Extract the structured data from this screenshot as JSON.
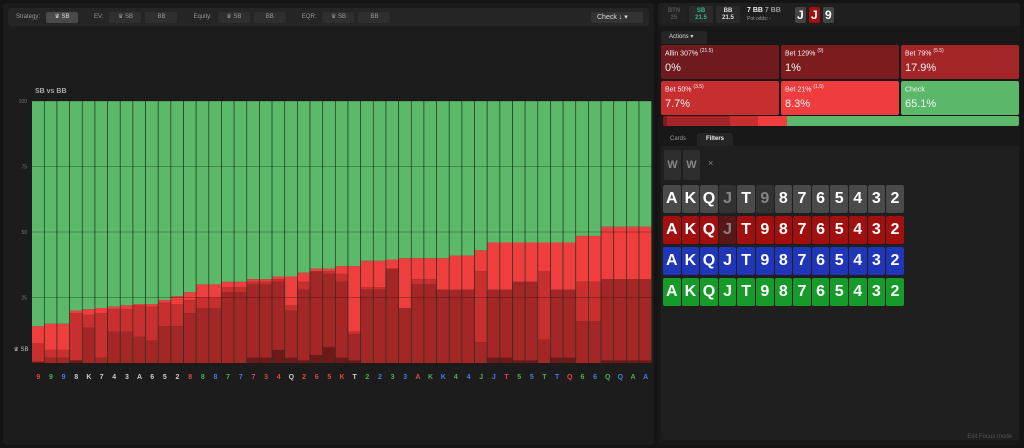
{
  "toolbar": {
    "strategy_label": "Strategy:",
    "ev_label": "EV:",
    "equity_label": "Equity:",
    "eqr_label": "EQR:",
    "sb": "♛ SB",
    "bb": "BB",
    "check_select": "Check ↓  ▾"
  },
  "chart_data": {
    "type": "bar",
    "stacked": true,
    "title": "SB vs BB",
    "ylabel": "♛ SB",
    "ylim": [
      0,
      100
    ],
    "yticks": [
      25,
      50,
      75,
      100
    ],
    "grid": true,
    "categories": [
      "9",
      "9",
      "9",
      "8",
      "K",
      "7",
      "4",
      "3",
      "A",
      "6",
      "5",
      "2",
      "8",
      "8",
      "8",
      "7",
      "7",
      "7",
      "3",
      "4",
      "Q",
      "2",
      "6",
      "5",
      "K",
      "T",
      "2",
      "2",
      "3",
      "3",
      "A",
      "K",
      "K",
      "4",
      "4",
      "J",
      "J",
      "T",
      "5",
      "5",
      "T",
      "T",
      "Q",
      "6",
      "6",
      "Q",
      "Q",
      "A",
      "A"
    ],
    "category_suits": [
      "h",
      "c",
      "d",
      "s",
      "s",
      "s",
      "s",
      "s",
      "s",
      "s",
      "s",
      "s",
      "h",
      "c",
      "d",
      "c",
      "d",
      "h",
      "h",
      "h",
      "s",
      "h",
      "h",
      "h",
      "h",
      "s",
      "c",
      "d",
      "c",
      "d",
      "h",
      "c",
      "d",
      "c",
      "d",
      "c",
      "d",
      "h",
      "c",
      "d",
      "c",
      "d",
      "h",
      "c",
      "d",
      "c",
      "d",
      "c",
      "d"
    ],
    "suit_colors": {
      "s": "#cccccc",
      "h": "#e04545",
      "c": "#4caf50",
      "d": "#3f7fe0"
    },
    "series": [
      {
        "name": "Allin 307%",
        "color": "#6e1818",
        "values": [
          0.5,
          0,
          0,
          1,
          0,
          0,
          0,
          0,
          0,
          0,
          0,
          0,
          0,
          0,
          0,
          0,
          0,
          2,
          2,
          5,
          2,
          1,
          3,
          6,
          2,
          1,
          0,
          0,
          0,
          0,
          0,
          0,
          0,
          0,
          0,
          0,
          2,
          2,
          1,
          1,
          0,
          2,
          2,
          0,
          0,
          1,
          1,
          1,
          1
        ]
      },
      {
        "name": "Bet 79%",
        "color": "#a52626",
        "values": [
          0,
          2,
          2,
          0,
          13.5,
          2,
          12,
          12,
          10,
          8.5,
          14,
          14,
          19,
          21,
          21,
          27,
          27,
          28,
          28,
          26,
          18,
          27,
          32,
          28,
          29,
          10,
          28,
          28,
          36,
          21,
          30,
          30,
          28,
          28,
          28,
          8,
          26,
          26,
          30,
          30,
          9,
          26,
          26,
          16,
          16,
          31,
          31,
          31,
          31
        ]
      },
      {
        "name": "Bet 50%",
        "color": "#c92f2f",
        "values": [
          7,
          3,
          3,
          18,
          5,
          17,
          8.5,
          8.5,
          12,
          13,
          9,
          8.5,
          5,
          4,
          4,
          2,
          2,
          1,
          1,
          1,
          2,
          3,
          0,
          1,
          3,
          1,
          1,
          1,
          0,
          0,
          2,
          2,
          0,
          0,
          0,
          27,
          0,
          0,
          0,
          0,
          26,
          0,
          0,
          15,
          15,
          0,
          0,
          0,
          0
        ]
      },
      {
        "name": "Bet 21%",
        "color": "#f03d3d",
        "values": [
          6.5,
          10,
          10,
          1,
          2,
          2,
          1,
          1.5,
          0.5,
          1,
          1,
          3,
          3,
          5,
          5,
          2,
          2,
          1,
          1,
          1,
          11,
          3.5,
          1,
          1,
          3,
          25,
          10,
          10,
          3.5,
          19,
          8,
          8,
          12,
          13,
          13,
          8,
          18,
          18,
          15,
          15,
          11,
          18,
          18,
          17.5,
          17.5,
          20,
          20,
          20,
          20
        ]
      },
      {
        "name": "Check",
        "color": "#5cb96a"
      }
    ]
  },
  "header": {
    "positions": [
      {
        "name": "BTN",
        "stack": "25"
      },
      {
        "name": "SB",
        "stack": "21.5"
      },
      {
        "name": "BB",
        "stack": "21.5"
      }
    ],
    "pot": "7 BB",
    "pot2": "7 BB",
    "pot_odds": "Pot odds:  -",
    "board": [
      "J",
      "J",
      "9"
    ]
  },
  "actions": {
    "tab": "Actions ▾",
    "items": [
      {
        "label": "Allin 307%",
        "size": "(21.5)",
        "freq": "0%",
        "color": "#6e1a1e"
      },
      {
        "label": "Bet 129%",
        "size": "(9)",
        "freq": "1%",
        "color": "#7d1c1f"
      },
      {
        "label": "Bet 79%",
        "size": "(5.5)",
        "freq": "17.9%",
        "color": "#a42528"
      },
      {
        "label": "Bet 50%",
        "size": "(3.5)",
        "freq": "7.7%",
        "color": "#c72e30"
      },
      {
        "label": "Bet 21%",
        "size": "(1.5)",
        "freq": "8.3%",
        "color": "#ef3c3f"
      },
      {
        "label": "Check",
        "size": "",
        "freq": "65.1%",
        "color": "#5bb86a"
      }
    ],
    "freq_bar": [
      0,
      1,
      17.9,
      7.7,
      8.3,
      65.1
    ]
  },
  "tabs": [
    "Cards",
    "Filters"
  ],
  "filters": {
    "ww": [
      "W",
      "W"
    ],
    "clear": "×",
    "ranks": [
      "A",
      "K",
      "Q",
      "J",
      "T",
      "9",
      "8",
      "7",
      "6",
      "5",
      "4",
      "3",
      "2"
    ],
    "rows": [
      {
        "suit": "spades",
        "color": "#4a4a4a",
        "disabled": [
          "J",
          "9"
        ]
      },
      {
        "suit": "hearts",
        "color": "#a10f0f",
        "disabled": [
          "J"
        ]
      },
      {
        "suit": "diamonds",
        "color": "#1f36b8",
        "disabled": []
      },
      {
        "suit": "clubs",
        "color": "#169a2a",
        "disabled": []
      }
    ]
  },
  "footer": {
    "exit": "Exit Focus mode"
  }
}
